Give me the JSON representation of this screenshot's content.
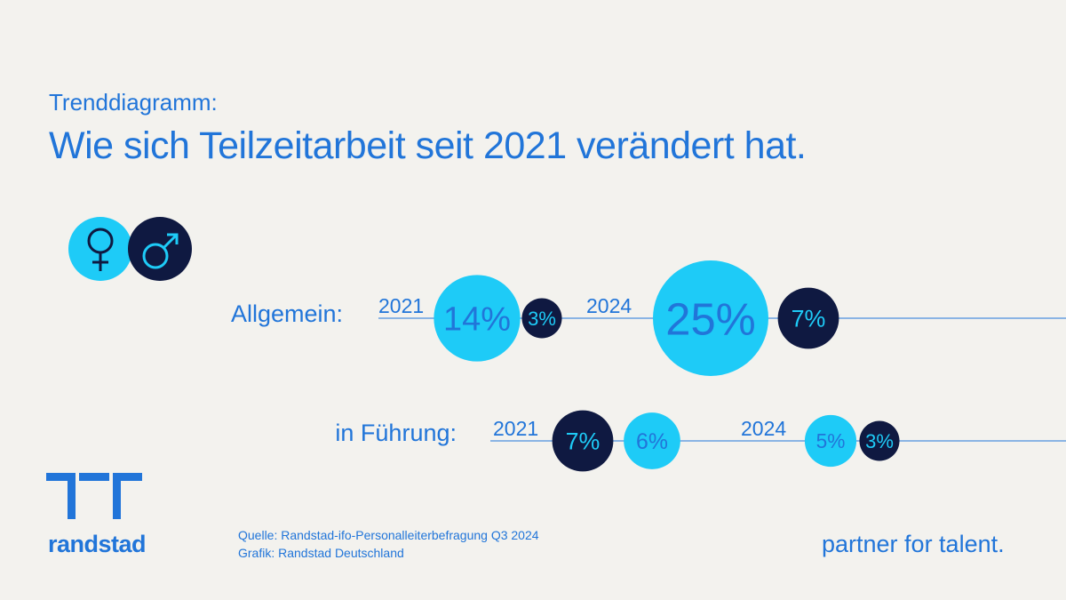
{
  "header": {
    "subtitle": "Trenddiagramm:",
    "title": "Wie sich Teilzeitarbeit seit 2021 verändert hat."
  },
  "legend": {
    "female_icon": "female-symbol-icon",
    "male_icon": "male-symbol-icon",
    "female_color": "#1ecbf7",
    "male_color": "#0f1941"
  },
  "chart_data": {
    "type": "bubble",
    "unit": "%",
    "rows": [
      {
        "label": "Allgemein:",
        "groups": [
          {
            "year": "2021",
            "female": 14,
            "male": 3,
            "female_label": "14%",
            "male_label": "3%",
            "front": "male"
          },
          {
            "year": "2024",
            "female": 25,
            "male": 7,
            "female_label": "25%",
            "male_label": "7%",
            "front": "male"
          }
        ]
      },
      {
        "label": "in Führung:",
        "groups": [
          {
            "year": "2021",
            "female": 6,
            "male": 7,
            "female_label": "6%",
            "male_label": "7%",
            "front": "female"
          },
          {
            "year": "2024",
            "female": 5,
            "male": 3,
            "female_label": "5%",
            "male_label": "3%",
            "front": "male"
          }
        ]
      }
    ],
    "colors": {
      "female": "#1ecbf7",
      "male": "#0f1941",
      "line": "#2175d9"
    }
  },
  "footer": {
    "brand": "randstad",
    "source": "Quelle: Randstad-ifo-Personalleiterbefragung Q3 2024",
    "credit": "Grafik: Randstad Deutschland",
    "tagline": "partner for talent."
  }
}
